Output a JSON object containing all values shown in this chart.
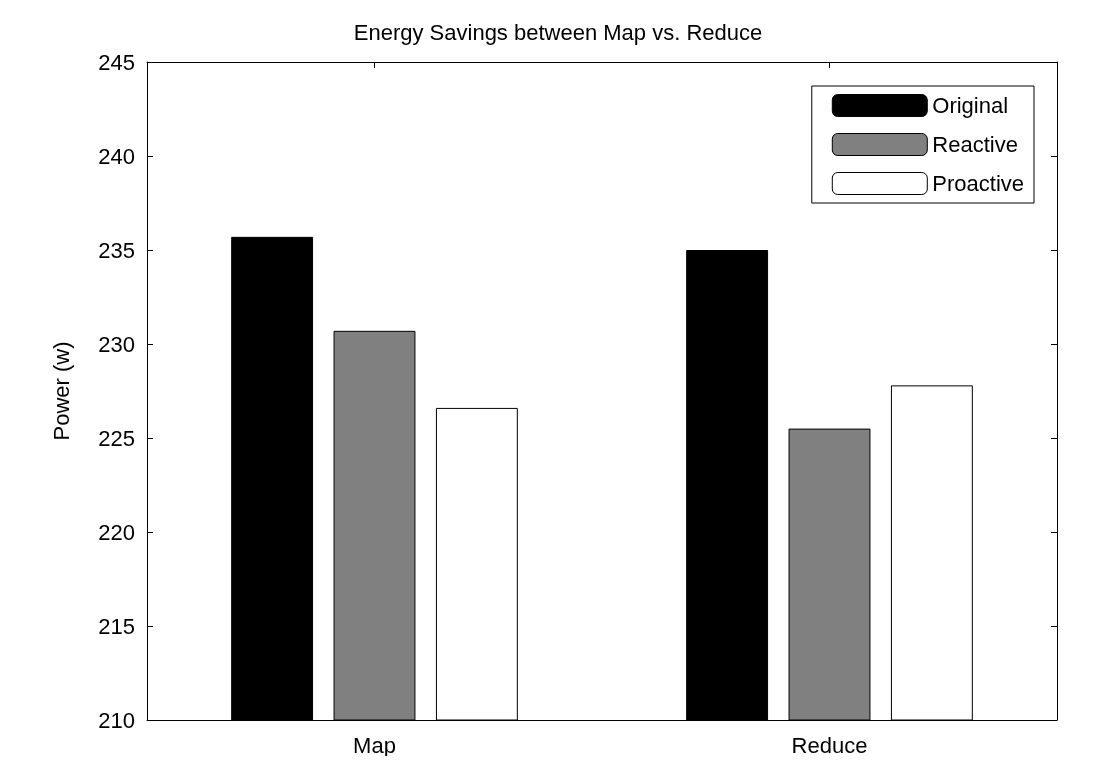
{
  "chart_data": {
    "type": "bar",
    "title": "Energy Savings between Map vs. Reduce",
    "ylabel": "Power (w)",
    "categories": [
      "Map",
      "Reduce"
    ],
    "series": [
      {
        "name": "Original",
        "color": "#000000",
        "values": [
          235.7,
          235.0
        ]
      },
      {
        "name": "Reactive",
        "color": "#808080",
        "values": [
          230.7,
          225.5
        ]
      },
      {
        "name": "Proactive",
        "color": "#ffffff",
        "values": [
          226.6,
          227.8
        ]
      }
    ],
    "ylim": [
      210,
      245
    ],
    "yticks": [
      210,
      215,
      220,
      225,
      230,
      235,
      240,
      245
    ],
    "grid": false,
    "legend": "top right"
  }
}
